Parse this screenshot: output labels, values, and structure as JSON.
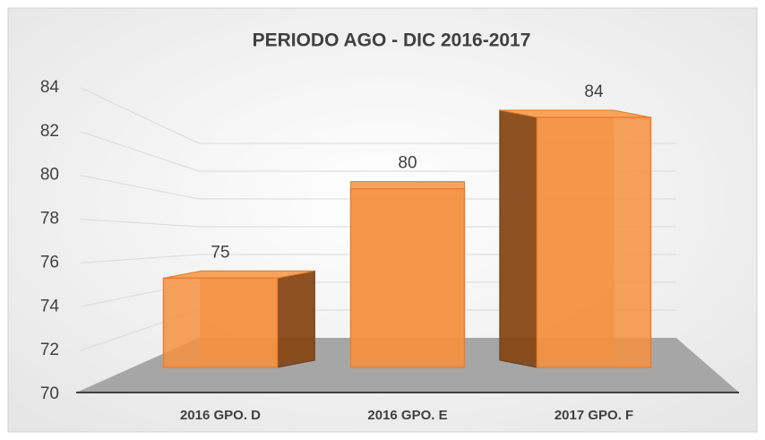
{
  "chart_data": {
    "type": "bar3d",
    "title": "PERIODO AGO - DIC 2016-2017",
    "categories": [
      "2016 GPO. D",
      "2016 GPO. E",
      "2017 GPO. F"
    ],
    "values": [
      75,
      80,
      84
    ],
    "color": "#f4913f",
    "ylim": [
      70,
      84
    ],
    "yticks": [
      70,
      72,
      74,
      76,
      78,
      80,
      82,
      84
    ],
    "grid": true
  }
}
